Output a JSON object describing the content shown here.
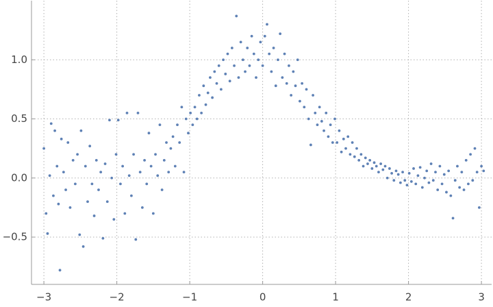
{
  "chart_data": {
    "type": "scatter",
    "color": "#5e81b5",
    "grid": true,
    "xlim": [
      -3.17,
      3.14
    ],
    "ylim": [
      -0.9,
      1.5
    ],
    "xticks": [
      {
        "value": -3,
        "label": "−3"
      },
      {
        "value": -2,
        "label": "−2"
      },
      {
        "value": -1,
        "label": "−1"
      },
      0,
      1,
      2,
      3
    ],
    "yticks": [
      {
        "value": -0.5,
        "label": "−0.5"
      },
      {
        "value": 0,
        "label": "0.0"
      },
      {
        "value": 0.5,
        "label": "0.5"
      },
      {
        "value": 1,
        "label": "1.0"
      }
    ],
    "x": [
      -3.0,
      -2.97,
      -2.95,
      -2.92,
      -2.9,
      -2.87,
      -2.85,
      -2.82,
      -2.8,
      -2.78,
      -2.76,
      -2.73,
      -2.7,
      -2.67,
      -2.64,
      -2.6,
      -2.57,
      -2.54,
      -2.51,
      -2.49,
      -2.46,
      -2.43,
      -2.4,
      -2.37,
      -2.34,
      -2.31,
      -2.28,
      -2.25,
      -2.22,
      -2.19,
      -2.16,
      -2.13,
      -2.1,
      -2.07,
      -2.04,
      -2.01,
      -1.98,
      -1.95,
      -1.92,
      -1.89,
      -1.86,
      -1.83,
      -1.8,
      -1.77,
      -1.74,
      -1.71,
      -1.68,
      -1.65,
      -1.62,
      -1.59,
      -1.56,
      -1.53,
      -1.5,
      -1.47,
      -1.44,
      -1.41,
      -1.38,
      -1.35,
      -1.32,
      -1.29,
      -1.26,
      -1.23,
      -1.2,
      -1.17,
      -1.14,
      -1.11,
      -1.08,
      -1.05,
      -1.02,
      -0.99,
      -0.96,
      -0.93,
      -0.9,
      -0.87,
      -0.84,
      -0.81,
      -0.78,
      -0.75,
      -0.72,
      -0.69,
      -0.66,
      -0.63,
      -0.6,
      -0.57,
      -0.54,
      -0.51,
      -0.48,
      -0.45,
      -0.42,
      -0.39,
      -0.36,
      -0.33,
      -0.3,
      -0.27,
      -0.24,
      -0.21,
      -0.18,
      -0.15,
      -0.12,
      -0.09,
      -0.06,
      -0.03,
      0.0,
      0.03,
      0.06,
      0.09,
      0.12,
      0.15,
      0.18,
      0.21,
      0.24,
      0.27,
      0.3,
      0.33,
      0.36,
      0.39,
      0.42,
      0.45,
      0.48,
      0.51,
      0.54,
      0.57,
      0.6,
      0.63,
      0.66,
      0.69,
      0.72,
      0.75,
      0.78,
      0.81,
      0.84,
      0.87,
      0.9,
      0.93,
      0.96,
      0.99,
      1.02,
      1.05,
      1.08,
      1.11,
      1.14,
      1.17,
      1.2,
      1.23,
      1.26,
      1.29,
      1.32,
      1.35,
      1.38,
      1.41,
      1.44,
      1.47,
      1.5,
      1.53,
      1.56,
      1.59,
      1.62,
      1.65,
      1.68,
      1.71,
      1.74,
      1.77,
      1.8,
      1.83,
      1.86,
      1.89,
      1.92,
      1.95,
      1.98,
      2.01,
      2.04,
      2.07,
      2.1,
      2.13,
      2.16,
      2.19,
      2.22,
      2.25,
      2.28,
      2.31,
      2.34,
      2.37,
      2.4,
      2.43,
      2.46,
      2.49,
      2.52,
      2.55,
      2.58,
      2.61,
      2.64,
      2.67,
      2.7,
      2.73,
      2.76,
      2.79,
      2.82,
      2.85,
      2.88,
      2.91,
      2.94,
      2.97,
      3.0,
      3.03
    ],
    "values": [
      0.25,
      -0.3,
      -0.47,
      0.02,
      0.46,
      -0.15,
      0.4,
      0.1,
      -0.22,
      -0.78,
      0.33,
      0.05,
      -0.1,
      0.3,
      -0.25,
      0.15,
      -0.05,
      0.2,
      -0.48,
      0.4,
      -0.58,
      0.1,
      -0.2,
      0.27,
      -0.05,
      -0.32,
      0.15,
      -0.1,
      0.05,
      -0.51,
      0.12,
      -0.2,
      0.49,
      0.0,
      -0.35,
      0.2,
      0.49,
      -0.05,
      0.1,
      -0.3,
      0.55,
      0.02,
      -0.15,
      0.2,
      -0.52,
      0.55,
      0.05,
      -0.25,
      0.15,
      -0.05,
      0.38,
      0.1,
      -0.3,
      0.2,
      0.02,
      0.45,
      -0.1,
      0.15,
      0.3,
      0.05,
      0.25,
      0.35,
      0.1,
      0.45,
      0.3,
      0.6,
      0.05,
      0.5,
      0.38,
      0.55,
      0.45,
      0.6,
      0.5,
      0.7,
      0.55,
      0.78,
      0.62,
      0.72,
      0.85,
      0.68,
      0.9,
      0.8,
      0.95,
      0.75,
      1.0,
      0.88,
      1.05,
      0.82,
      1.1,
      0.95,
      1.37,
      0.85,
      1.15,
      1.0,
      0.9,
      1.1,
      0.95,
      1.2,
      1.05,
      0.85,
      1.0,
      1.15,
      0.95,
      1.2,
      1.3,
      1.05,
      0.9,
      1.1,
      0.78,
      1.0,
      1.22,
      0.85,
      1.05,
      0.8,
      0.95,
      0.7,
      0.9,
      0.78,
      1.0,
      0.65,
      0.8,
      0.6,
      0.75,
      0.5,
      0.28,
      0.7,
      0.55,
      0.45,
      0.6,
      0.48,
      0.4,
      0.55,
      0.35,
      0.45,
      0.3,
      0.5,
      0.3,
      0.4,
      0.22,
      0.33,
      0.25,
      0.35,
      0.2,
      0.3,
      0.18,
      0.25,
      0.15,
      0.2,
      0.1,
      0.17,
      0.12,
      0.15,
      0.08,
      0.13,
      0.1,
      0.05,
      0.12,
      0.07,
      0.1,
      0.0,
      0.08,
      0.04,
      -0.02,
      0.06,
      0.03,
      -0.04,
      0.05,
      -0.02,
      -0.06,
      0.04,
      -0.03,
      0.08,
      -0.05,
      0.02,
      0.09,
      -0.08,
      0.0,
      0.06,
      -0.04,
      0.12,
      -0.02,
      0.05,
      -0.1,
      0.1,
      -0.05,
      0.03,
      -0.12,
      0.06,
      -0.15,
      -0.34,
      -0.02,
      0.1,
      -0.08,
      0.05,
      -0.1,
      0.15,
      -0.05,
      0.2,
      -0.02,
      0.25,
      0.05,
      -0.25,
      0.1,
      0.06
    ]
  }
}
